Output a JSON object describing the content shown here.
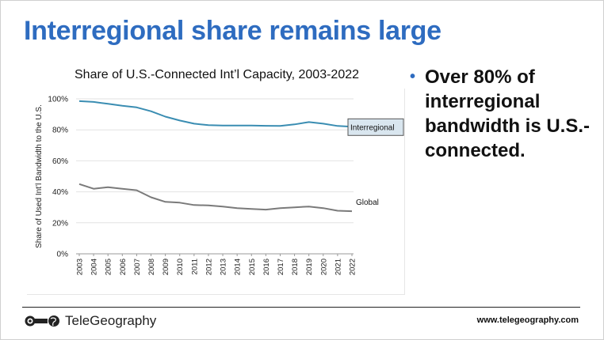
{
  "slide": {
    "title": "Interregional share remains large",
    "bullet": "Over 80% of interregional bandwidth is U.S.-connected.",
    "footer_brand": "TeleGeography",
    "footer_url": "www.telegeography.com"
  },
  "chart_data": {
    "type": "line",
    "title": "Share of U.S.-Connected Int’l Capacity, 2003-2022",
    "xlabel": "",
    "ylabel": "Share of Used Int’l Bandwidth to the U.S.",
    "ylim": [
      0,
      100
    ],
    "yticks": [
      "0%",
      "20%",
      "40%",
      "60%",
      "80%",
      "100%"
    ],
    "ytick_values": [
      0,
      20,
      40,
      60,
      80,
      100
    ],
    "categories": [
      "2003",
      "2004",
      "2005",
      "2006",
      "2007",
      "2008",
      "2009",
      "2010",
      "2011",
      "2012",
      "2013",
      "2014",
      "2015",
      "2016",
      "2017",
      "2018",
      "2019",
      "2020",
      "2021",
      "2022"
    ],
    "grid": true,
    "series": [
      {
        "name": "Interregional",
        "color": "#3a8db2",
        "values": [
          98.5,
          98,
          96.8,
          95.5,
          94.5,
          92,
          88.5,
          86,
          84,
          83,
          82.8,
          82.8,
          82.8,
          82.6,
          82.5,
          83.5,
          85,
          84,
          82.5,
          82
        ]
      },
      {
        "name": "Global",
        "color": "#7a7a7a",
        "values": [
          45,
          42,
          43,
          42,
          41,
          36.5,
          33.5,
          33,
          31.5,
          31.2,
          30.5,
          29.5,
          29,
          28.5,
          29.5,
          30,
          30.5,
          29.5,
          27.8,
          27.5
        ]
      }
    ]
  }
}
